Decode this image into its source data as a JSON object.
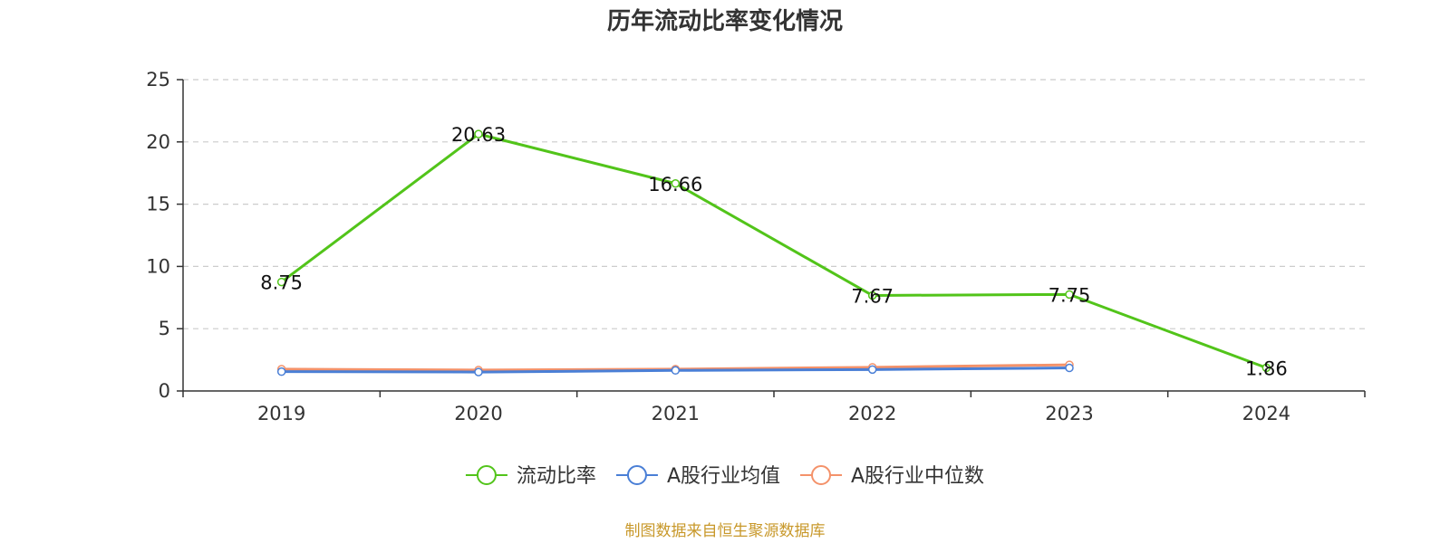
{
  "title": "历年流动比率变化情况",
  "source_note": "制图数据来自恒生聚源数据库",
  "colors": {
    "series_current_ratio": "#52c41a",
    "series_industry_mean": "#4a7fd6",
    "series_industry_median": "#f4926a",
    "source_note": "#c8982a",
    "grid": "#cccccc",
    "axis": "#333333"
  },
  "chart_data": {
    "type": "line",
    "title": "历年流动比率变化情况",
    "x": [
      "2019",
      "2020",
      "2021",
      "2022",
      "2023",
      "2024"
    ],
    "ylim": [
      0,
      25
    ],
    "yticks": [
      0,
      5,
      10,
      15,
      20,
      25
    ],
    "grid": true,
    "legend_position": "bottom",
    "series": [
      {
        "name": "流动比率",
        "values": [
          8.75,
          20.63,
          16.66,
          7.67,
          7.75,
          1.86
        ],
        "data_labels": [
          "8.75",
          "20.63",
          "16.66",
          "7.67",
          "7.75",
          "1.86"
        ]
      },
      {
        "name": "A股行业均值",
        "values": [
          1.55,
          1.52,
          1.65,
          1.72,
          1.85,
          null
        ]
      },
      {
        "name": "A股行业中位数",
        "values": [
          1.75,
          1.68,
          1.75,
          1.9,
          2.1,
          null
        ]
      }
    ]
  }
}
